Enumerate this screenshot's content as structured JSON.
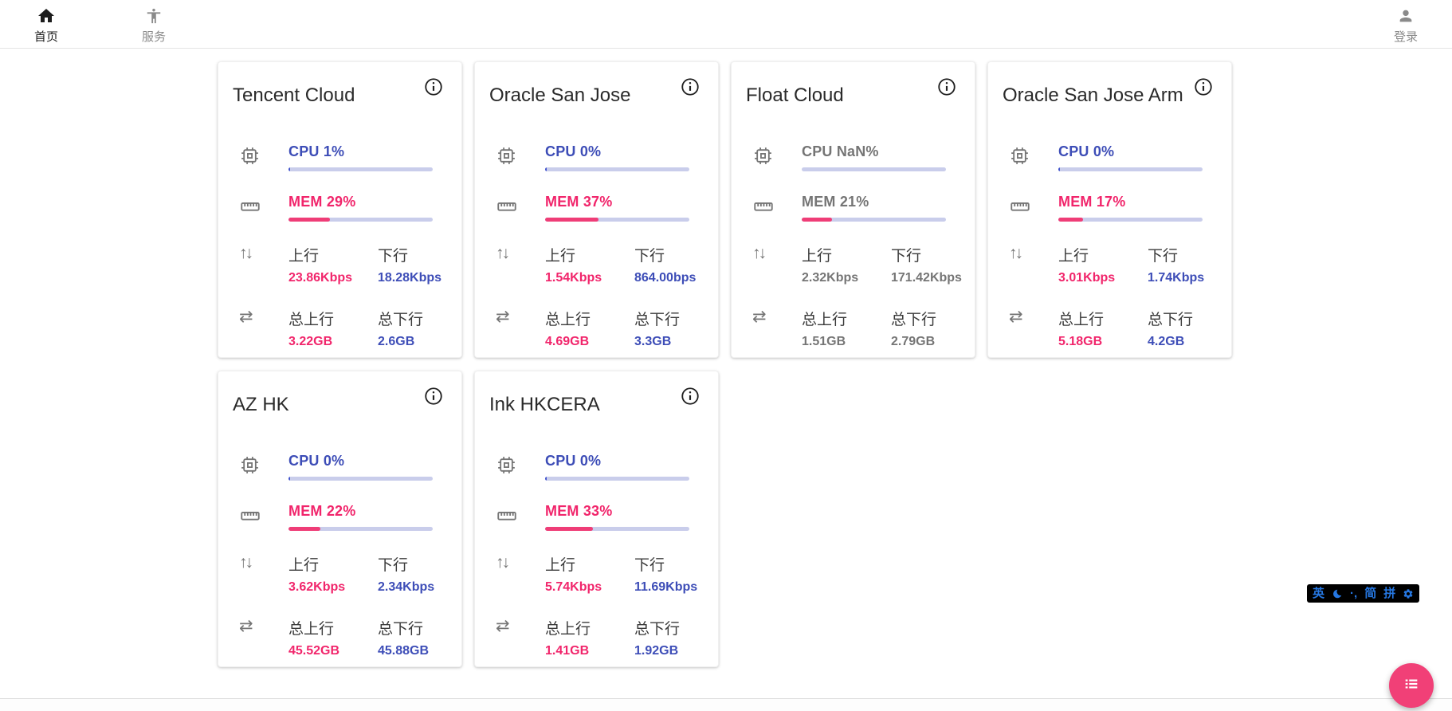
{
  "nav": {
    "home": {
      "label": "首页",
      "icon": "home-icon",
      "active": true
    },
    "services": {
      "label": "服务",
      "icon": "accessibility-icon",
      "active": false
    },
    "login": {
      "label": "登录",
      "icon": "account-icon"
    }
  },
  "labels": {
    "cpu": "CPU",
    "mem": "MEM",
    "upload": "上行",
    "download": "下行",
    "total_upload": "总上行",
    "total_download": "总下行"
  },
  "colors": {
    "accent_blue": "#3d4db7",
    "accent_pink": "#f1256b",
    "bar_track": "#c9cdeb",
    "offline_gray": "#757575",
    "fab_pink": "#f14077",
    "ime_blue": "#2678e3"
  },
  "servers": [
    {
      "name": "Tencent Cloud",
      "cpu": "1%",
      "cpu_pct": 1,
      "mem": "29%",
      "mem_pct": 29,
      "upload": "23.86Kbps",
      "download": "18.28Kbps",
      "total_upload": "3.22GB",
      "total_download": "2.6GB",
      "online": true
    },
    {
      "name": "Oracle San Jose",
      "cpu": "0%",
      "cpu_pct": 0,
      "mem": "37%",
      "mem_pct": 37,
      "upload": "1.54Kbps",
      "download": "864.00bps",
      "total_upload": "4.69GB",
      "total_download": "3.3GB",
      "online": true
    },
    {
      "name": "Float Cloud",
      "cpu": "NaN%",
      "cpu_pct": 0,
      "mem": "21%",
      "mem_pct": 21,
      "upload": "2.32Kbps",
      "download": "171.42Kbps",
      "total_upload": "1.51GB",
      "total_download": "2.79GB",
      "online": false
    },
    {
      "name": "Oracle San Jose Arm",
      "cpu": "0%",
      "cpu_pct": 0,
      "mem": "17%",
      "mem_pct": 17,
      "upload": "3.01Kbps",
      "download": "1.74Kbps",
      "total_upload": "5.18GB",
      "total_download": "4.2GB",
      "online": true
    },
    {
      "name": "AZ HK",
      "cpu": "0%",
      "cpu_pct": 0,
      "mem": "22%",
      "mem_pct": 22,
      "upload": "3.62Kbps",
      "download": "2.34Kbps",
      "total_upload": "45.52GB",
      "total_download": "45.88GB",
      "online": true
    },
    {
      "name": "Ink HKCERA",
      "cpu": "0%",
      "cpu_pct": 0,
      "mem": "33%",
      "mem_pct": 33,
      "upload": "5.74Kbps",
      "download": "11.69Kbps",
      "total_upload": "1.41GB",
      "total_download": "1.92GB",
      "online": true
    }
  ],
  "ime_toolbar": {
    "english": "英",
    "moon": "moon-icon",
    "punct": "·,",
    "simplified": "简",
    "pinyin": "拼",
    "settings": "gear-icon"
  },
  "fab": {
    "icon": "list-icon"
  }
}
